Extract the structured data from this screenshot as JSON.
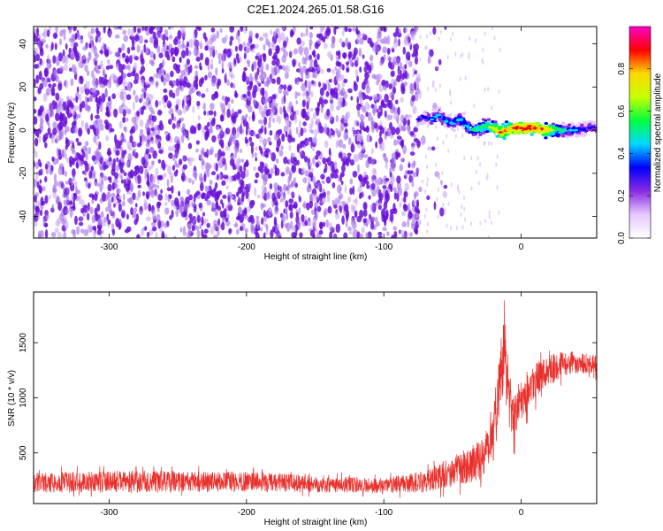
{
  "figure": {
    "title": "C2E1.2024.265.01.58.G16"
  },
  "colors": {
    "snr_line": "#e8302c",
    "speckle_dark": "#6a10d8",
    "speckle_light": "#c9a7f4"
  },
  "chart_data": [
    {
      "type": "heatmap",
      "title": "",
      "xlabel": "Height of straight line (km)",
      "ylabel": "Frequency (Hz)",
      "xlim": [
        -355,
        55
      ],
      "ylim": [
        -50,
        48
      ],
      "xticks": [
        "-300",
        "-200",
        "-100",
        "0"
      ],
      "xtick_values": [
        -300,
        -200,
        -100,
        0
      ],
      "yticks": [
        "-40",
        "-20",
        "0",
        "20",
        "40"
      ],
      "ytick_values": [
        -40,
        -20,
        0,
        20,
        40
      ],
      "colorbar": {
        "label": "Normalized spectral amplitude",
        "range": [
          0.0,
          1.0
        ],
        "ticks": [
          "0.0",
          "0.2",
          "0.4",
          "0.6",
          "0.8"
        ],
        "tick_values": [
          0.0,
          0.2,
          0.4,
          0.6,
          0.8
        ],
        "colors": [
          "#ffffff",
          "#e6c8ff",
          "#8b2be2",
          "#0000ff",
          "#00d8ff",
          "#00ff40",
          "#c8ff00",
          "#ffd800",
          "#ff0000",
          "#ff00c8"
        ]
      },
      "noise_region_x": [
        -355,
        -75
      ],
      "ridge": {
        "x": [
          -75,
          -70,
          -65,
          -60,
          -55,
          -50,
          -45,
          -40,
          -35,
          -30,
          -25,
          -20,
          -15,
          -10,
          -5,
          0,
          5,
          10,
          20,
          30,
          40,
          50
        ],
        "y": [
          5,
          6,
          5,
          7,
          4,
          3,
          5,
          2,
          0,
          1,
          2,
          1,
          -1,
          0,
          1,
          1,
          1,
          1,
          0,
          0,
          0,
          1
        ],
        "amplitude": [
          0.3,
          0.35,
          0.4,
          0.45,
          0.4,
          0.4,
          0.45,
          0.45,
          0.5,
          0.55,
          0.6,
          0.7,
          0.85,
          0.8,
          0.85,
          0.9,
          0.9,
          0.85,
          0.75,
          0.5,
          0.4,
          0.35
        ]
      }
    },
    {
      "type": "line",
      "title": "",
      "xlabel": "Height of straight line (km)",
      "ylabel": "SNR (10 * v/v)",
      "xlim": [
        -355,
        55
      ],
      "ylim": [
        40,
        1960
      ],
      "xticks": [
        "-300",
        "-200",
        "-100",
        "0"
      ],
      "xtick_values": [
        -300,
        -200,
        -100,
        0
      ],
      "yticks": [
        "500",
        "1000",
        "1500"
      ],
      "ytick_values": [
        500,
        1000,
        1500
      ],
      "series_envelope": {
        "x": [
          -355,
          -300,
          -200,
          -100,
          -70,
          -50,
          -30,
          -20,
          -15,
          -12,
          -10,
          -5,
          0,
          10,
          20,
          30,
          40,
          55
        ],
        "mean": [
          230,
          240,
          240,
          200,
          240,
          330,
          430,
          700,
          1200,
          1500,
          1000,
          850,
          1000,
          1150,
          1250,
          1300,
          1320,
          1300
        ],
        "spread": [
          90,
          100,
          90,
          70,
          100,
          140,
          180,
          280,
          300,
          350,
          300,
          230,
          200,
          170,
          140,
          120,
          100,
          90
        ]
      }
    }
  ]
}
